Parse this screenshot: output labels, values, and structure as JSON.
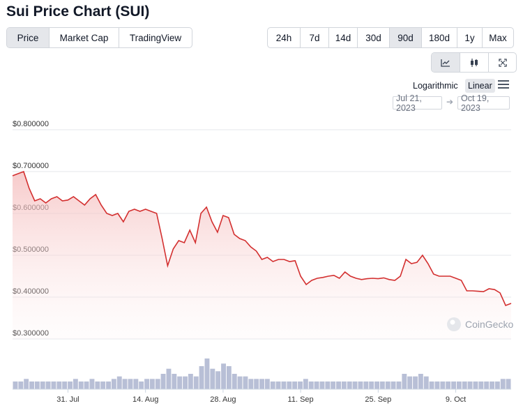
{
  "page": {
    "title": "Sui Price Chart (SUI)"
  },
  "tabs": {
    "view": [
      {
        "label": "Price",
        "active": true
      },
      {
        "label": "Market Cap",
        "active": false
      },
      {
        "label": "TradingView",
        "active": false
      }
    ],
    "range": [
      {
        "label": "24h",
        "active": false
      },
      {
        "label": "7d",
        "active": false
      },
      {
        "label": "14d",
        "active": false
      },
      {
        "label": "30d",
        "active": false
      },
      {
        "label": "90d",
        "active": true
      },
      {
        "label": "180d",
        "active": false
      },
      {
        "label": "1y",
        "active": false
      },
      {
        "label": "Max",
        "active": false
      }
    ],
    "chart_type": [
      {
        "icon": "line-chart-icon",
        "active": true
      },
      {
        "icon": "candlestick-icon",
        "active": false
      },
      {
        "icon": "expand-icon",
        "active": false
      }
    ]
  },
  "scale": {
    "log_label": "Logarithmic",
    "linear_label": "Linear",
    "selected": "Linear"
  },
  "date_range": {
    "from": "Jul 21, 2023",
    "to": "Oct 19, 2023"
  },
  "watermark": "CoinGecko",
  "colors": {
    "line": "#d32f2f",
    "area": "#f8d7d7",
    "volume": "#b8bfd6"
  },
  "chart_data": {
    "type": "area",
    "title": "",
    "xlabel": "",
    "ylabel": "",
    "ylim": [
      0.3,
      0.8
    ],
    "y_ticks": [
      "$0.800000",
      "$0.700000",
      "$0.600000",
      "$0.500000",
      "$0.400000",
      "$0.300000"
    ],
    "y_tick_values": [
      0.8,
      0.7,
      0.6,
      0.5,
      0.4,
      0.3
    ],
    "x_ticks": [
      "31. Jul",
      "14. Aug",
      "28. Aug",
      "11. Sep",
      "25. Sep",
      "9. Oct"
    ],
    "x_tick_dates": [
      "2023-07-31",
      "2023-08-14",
      "2023-08-28",
      "2023-09-11",
      "2023-09-25",
      "2023-10-09"
    ],
    "x_range": [
      "2023-07-21",
      "2023-10-19"
    ],
    "grid": true,
    "series": [
      {
        "x": [
          "2023-07-21",
          "2023-07-22",
          "2023-07-23",
          "2023-07-24",
          "2023-07-25",
          "2023-07-26",
          "2023-07-27",
          "2023-07-28",
          "2023-07-29",
          "2023-07-30",
          "2023-07-31",
          "2023-08-01",
          "2023-08-02",
          "2023-08-03",
          "2023-08-04",
          "2023-08-05",
          "2023-08-06",
          "2023-08-07",
          "2023-08-08",
          "2023-08-09",
          "2023-08-10",
          "2023-08-11",
          "2023-08-12",
          "2023-08-13",
          "2023-08-14",
          "2023-08-15",
          "2023-08-16",
          "2023-08-17",
          "2023-08-18",
          "2023-08-19",
          "2023-08-20",
          "2023-08-21",
          "2023-08-22",
          "2023-08-23",
          "2023-08-24",
          "2023-08-25",
          "2023-08-26",
          "2023-08-27",
          "2023-08-28",
          "2023-08-29",
          "2023-08-30",
          "2023-08-31",
          "2023-09-01",
          "2023-09-02",
          "2023-09-03",
          "2023-09-04",
          "2023-09-05",
          "2023-09-06",
          "2023-09-07",
          "2023-09-08",
          "2023-09-09",
          "2023-09-10",
          "2023-09-11",
          "2023-09-12",
          "2023-09-13",
          "2023-09-14",
          "2023-09-15",
          "2023-09-16",
          "2023-09-17",
          "2023-09-18",
          "2023-09-19",
          "2023-09-20",
          "2023-09-21",
          "2023-09-22",
          "2023-09-23",
          "2023-09-24",
          "2023-09-25",
          "2023-09-26",
          "2023-09-27",
          "2023-09-28",
          "2023-09-29",
          "2023-09-30",
          "2023-10-01",
          "2023-10-02",
          "2023-10-03",
          "2023-10-04",
          "2023-10-05",
          "2023-10-06",
          "2023-10-07",
          "2023-10-08",
          "2023-10-09",
          "2023-10-10",
          "2023-10-11",
          "2023-10-12",
          "2023-10-13",
          "2023-10-14",
          "2023-10-15",
          "2023-10-16",
          "2023-10-17",
          "2023-10-18",
          "2023-10-19"
        ],
        "y": [
          0.69,
          0.695,
          0.7,
          0.66,
          0.63,
          0.635,
          0.625,
          0.635,
          0.64,
          0.63,
          0.632,
          0.64,
          0.63,
          0.62,
          0.635,
          0.645,
          0.62,
          0.6,
          0.595,
          0.6,
          0.58,
          0.605,
          0.61,
          0.605,
          0.61,
          0.605,
          0.6,
          0.54,
          0.475,
          0.515,
          0.535,
          0.53,
          0.56,
          0.53,
          0.6,
          0.615,
          0.58,
          0.555,
          0.595,
          0.59,
          0.55,
          0.54,
          0.535,
          0.52,
          0.51,
          0.49,
          0.495,
          0.485,
          0.49,
          0.49,
          0.485,
          0.487,
          0.45,
          0.43,
          0.44,
          0.445,
          0.447,
          0.45,
          0.452,
          0.445,
          0.46,
          0.45,
          0.445,
          0.442,
          0.444,
          0.445,
          0.444,
          0.446,
          0.442,
          0.44,
          0.45,
          0.49,
          0.48,
          0.483,
          0.5,
          0.48,
          0.455,
          0.45,
          0.45,
          0.45,
          0.445,
          0.44,
          0.415,
          0.415,
          0.414,
          0.413,
          0.42,
          0.418,
          0.41,
          0.38,
          0.385
        ]
      }
    ],
    "volume": [
      3,
      3,
      4,
      3,
      3,
      3,
      3,
      3,
      3,
      3,
      3,
      4,
      3,
      3,
      4,
      3,
      3,
      3,
      4,
      5,
      4,
      4,
      4,
      3,
      4,
      4,
      4,
      6,
      8,
      6,
      5,
      5,
      6,
      5,
      9,
      12,
      8,
      7,
      10,
      9,
      6,
      5,
      5,
      4,
      4,
      4,
      4,
      3,
      3,
      3,
      3,
      3,
      3,
      4,
      3,
      3,
      3,
      3,
      3,
      3,
      3,
      3,
      3,
      3,
      3,
      3,
      3,
      3,
      3,
      3,
      3,
      6,
      5,
      5,
      6,
      5,
      3,
      3,
      3,
      3,
      3,
      3,
      3,
      3,
      3,
      3,
      3,
      3,
      3,
      4,
      4
    ]
  }
}
